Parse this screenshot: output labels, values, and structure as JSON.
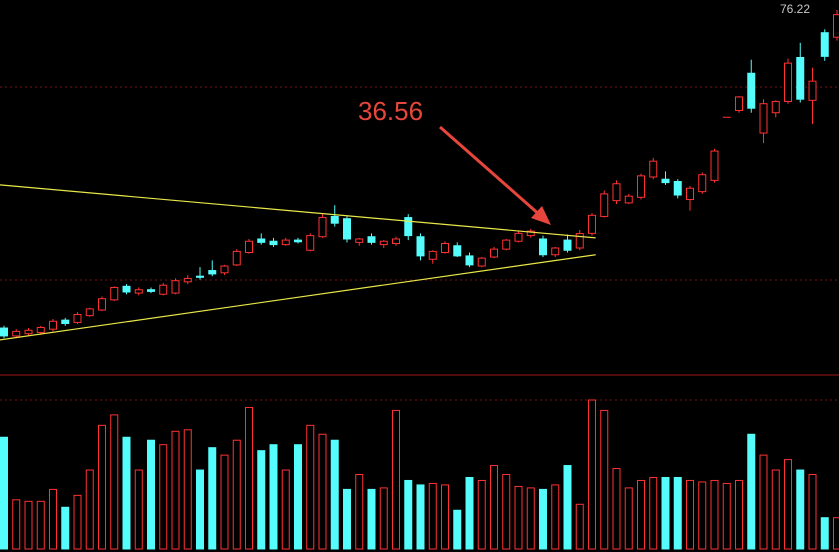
{
  "chart_data": {
    "type": "candlestick",
    "open": [
      19.8,
      18.4,
      18.8,
      19.0,
      19.6,
      21.2,
      20.8,
      22.0,
      23.0,
      24.8,
      27.2,
      26.0,
      26.6,
      25.8,
      26.0,
      28.0,
      29.0,
      30.0,
      29.6,
      31.0,
      33.2,
      35.6,
      35.2,
      34.6,
      35.4,
      33.6,
      36.0,
      39.6,
      39.2,
      35.0,
      36.0,
      34.6,
      34.8,
      39.4,
      36.0,
      32.0,
      33.2,
      34.4,
      32.6,
      30.8,
      32.4,
      33.8,
      35.2,
      36.2,
      35.6,
      32.8,
      35.4,
      34.0,
      36.6,
      39.6,
      42.4,
      42.0,
      43.0,
      46.6,
      46.2,
      45.8,
      42.6,
      44.0,
      46.0,
      57.2,
      58.4,
      65.0,
      54.4,
      58.0,
      60.0,
      67.8,
      60.2,
      72.2,
      71.4
    ],
    "high": [
      20.2,
      19.6,
      19.8,
      20.2,
      21.4,
      21.6,
      22.6,
      23.4,
      25.4,
      27.2,
      27.6,
      27.0,
      27.0,
      27.8,
      28.6,
      29.2,
      30.6,
      31.8,
      31.0,
      33.8,
      35.6,
      36.6,
      35.8,
      35.8,
      35.8,
      36.6,
      40.0,
      41.6,
      39.6,
      35.8,
      36.6,
      35.4,
      36.0,
      40.0,
      36.6,
      33.6,
      35.2,
      35.0,
      33.2,
      32.4,
      34.2,
      35.6,
      37.0,
      37.4,
      36.2,
      34.2,
      36.4,
      37.2,
      40.2,
      44.2,
      46.0,
      43.6,
      47.2,
      50.0,
      47.6,
      46.2,
      45.0,
      47.4,
      51.6,
      57.2,
      61.0,
      67.4,
      60.4,
      60.2,
      67.6,
      70.4,
      66.0,
      72.8,
      76.22
    ],
    "low": [
      18.0,
      18.0,
      18.4,
      18.6,
      19.2,
      20.2,
      20.5,
      21.8,
      22.8,
      24.6,
      25.8,
      25.6,
      26.0,
      25.6,
      25.8,
      27.6,
      28.4,
      29.0,
      29.2,
      30.8,
      33.0,
      34.6,
      34.2,
      34.4,
      34.8,
      33.4,
      35.8,
      37.8,
      35.0,
      34.4,
      34.6,
      34.0,
      34.4,
      35.4,
      31.8,
      31.2,
      33.0,
      32.4,
      30.6,
      30.6,
      32.2,
      33.6,
      35.0,
      35.8,
      32.4,
      32.4,
      33.2,
      33.6,
      36.2,
      39.4,
      41.8,
      41.8,
      42.6,
      46.2,
      45.2,
      42.8,
      40.6,
      43.6,
      45.6,
      57.2,
      58.0,
      58.0,
      52.6,
      57.2,
      59.6,
      59.8,
      56.0,
      67.2,
      70.8
    ],
    "close": [
      18.4,
      19.2,
      19.4,
      19.9,
      21.0,
      20.6,
      22.2,
      23.2,
      25.0,
      27.0,
      26.2,
      26.6,
      26.3,
      27.4,
      28.2,
      28.6,
      28.8,
      29.4,
      30.8,
      33.4,
      35.2,
      35.0,
      34.6,
      35.4,
      35.1,
      36.2,
      39.4,
      38.4,
      35.6,
      35.6,
      35.0,
      35.2,
      35.6,
      36.2,
      32.6,
      33.4,
      34.8,
      32.6,
      31.0,
      32.2,
      33.8,
      35.4,
      36.6,
      37.0,
      32.8,
      34.0,
      33.6,
      36.56,
      39.8,
      43.6,
      45.4,
      43.2,
      46.8,
      49.4,
      45.6,
      43.4,
      44.6,
      47.0,
      51.2,
      57.2,
      60.8,
      58.8,
      59.6,
      60.0,
      66.8,
      60.4,
      63.6,
      68.0,
      75.4
    ],
    "volume": [
      75,
      33,
      32,
      32,
      40,
      28,
      36,
      53,
      83,
      90,
      75,
      53,
      73,
      70,
      79,
      80,
      53,
      68,
      63,
      73,
      95,
      66,
      70,
      53,
      70,
      83,
      77,
      73,
      40,
      50,
      40,
      41,
      93,
      46,
      43,
      44,
      43,
      26,
      48,
      46,
      56,
      50,
      42,
      41,
      40,
      43,
      56,
      30,
      100,
      93,
      54,
      41,
      46,
      48,
      48,
      48,
      46,
      45,
      46,
      44,
      46,
      77,
      63,
      53,
      60,
      53,
      50,
      21,
      21
    ],
    "up_color": "#ff3232",
    "down_color": "#54fcfc",
    "ylim": [
      12,
      78
    ],
    "vlim": [
      0,
      100
    ],
    "trendlines": [
      {
        "x": [
          -0.33,
          48.3
        ],
        "values": [
          45.2,
          35.8
        ]
      },
      {
        "x": [
          -0.33,
          48.3
        ],
        "values": [
          17.7,
          32.8
        ]
      }
    ],
    "trend_color": "#e8e84a",
    "high_label": 76.22,
    "annotation": 36.56
  }
}
